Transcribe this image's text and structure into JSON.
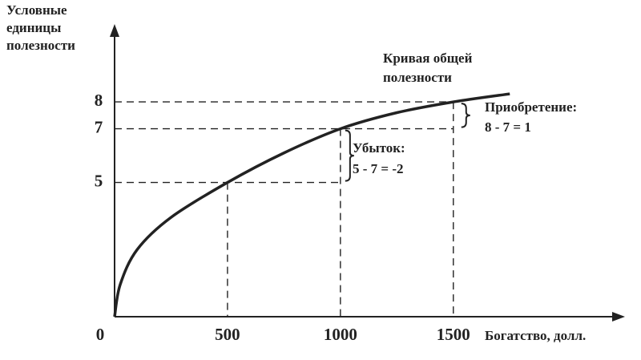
{
  "chart_data": {
    "type": "line",
    "y_label_lines": [
      "Условные",
      "единицы",
      "полезности"
    ],
    "x_label": "Богатство, долл.",
    "curve_label_lines": [
      "Кривая общей",
      "полезности"
    ],
    "gain_lines": [
      "Приобретение:",
      "8 - 7 = 1"
    ],
    "loss_lines": [
      "Убыток:",
      "5 - 7 = -2"
    ],
    "x": [
      0,
      25,
      100,
      250,
      500,
      750,
      1000,
      1250,
      1500,
      1750
    ],
    "series": [
      {
        "name": "Кривая общей полезности",
        "color": "#222222",
        "values": [
          0,
          1.2,
          2.5,
          3.7,
          5,
          6.1,
          7,
          7.6,
          8,
          8.3
        ]
      }
    ],
    "guides": [
      {
        "x": 500,
        "y": 5,
        "h_end": 1000
      },
      {
        "x": 1000,
        "y": 7,
        "h_end": 1500
      },
      {
        "x": 1500,
        "y": 8,
        "h_end": 1500
      }
    ],
    "xlim": [
      0,
      2260
    ],
    "ylim": [
      0,
      10.9
    ],
    "xticks": [
      0,
      500,
      1000,
      1500
    ],
    "yticks": [
      5,
      7,
      8
    ]
  }
}
